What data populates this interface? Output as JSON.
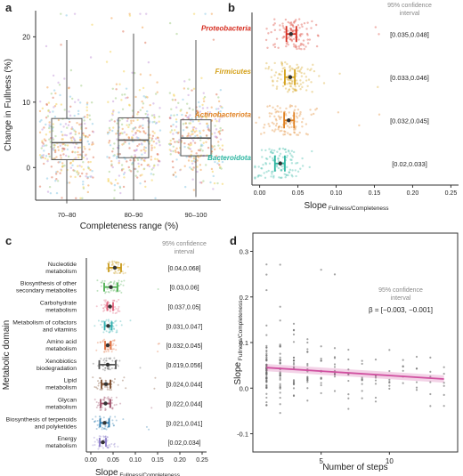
{
  "chart_data": [
    {
      "panel": "a",
      "type": "box",
      "xlabel": "Completeness range (%)",
      "ylabel": "Change in Fullness (%)",
      "categories": [
        "70–80",
        "80–90",
        "90–100"
      ],
      "ylim": [
        -5,
        24
      ],
      "yticks": [
        0,
        10,
        20
      ],
      "boxes": [
        {
          "min": -5.5,
          "q1": 1.2,
          "median": 3.8,
          "q3": 7.5,
          "max": 19.5
        },
        {
          "min": -5.0,
          "q1": 1.5,
          "median": 4.2,
          "q3": 7.6,
          "max": 20.5
        },
        {
          "min": -4.5,
          "q1": 1.8,
          "median": 4.5,
          "q3": 7.3,
          "max": 19.5
        }
      ],
      "point_colors": [
        "#e07a5f",
        "#f2a65a",
        "#8ecae6",
        "#c9a0dc",
        "#a8d08d",
        "#f4d35e"
      ]
    },
    {
      "panel": "b",
      "type": "forest",
      "xlabel": "Slope",
      "xlabel_sub": "Fullness/Completeness",
      "xlim": [
        -0.01,
        0.26
      ],
      "xticks": [
        "0.00",
        "0.05",
        "0.10",
        "0.15",
        "0.20",
        "0.25"
      ],
      "ci_header": "95% confidence interval",
      "series": [
        {
          "name": "Proteobacteria",
          "color": "#d62d20",
          "estimate": 0.041,
          "ci": [
            0.035,
            0.048
          ],
          "ci_label": "[0.035,0.048]"
        },
        {
          "name": "Firmicutes",
          "color": "#d4a017",
          "estimate": 0.04,
          "ci": [
            0.033,
            0.046
          ],
          "ci_label": "[0.033,0.046]"
        },
        {
          "name": "Actinobacteriota",
          "color": "#e08020",
          "estimate": 0.038,
          "ci": [
            0.032,
            0.045
          ],
          "ci_label": "[0.032,0.045]"
        },
        {
          "name": "Bacteroidota",
          "color": "#2ab5a0",
          "estimate": 0.027,
          "ci": [
            0.02,
            0.033
          ],
          "ci_label": "[0.02,0.033]"
        }
      ]
    },
    {
      "panel": "c",
      "type": "forest",
      "ylabel": "Metabolic domain",
      "xlabel": "Slope",
      "xlabel_sub": "Fullness/Completeness",
      "xlim": [
        -0.01,
        0.26
      ],
      "xticks": [
        "0.00",
        "0.05",
        "0.10",
        "0.15",
        "0.20",
        "0.25"
      ],
      "ci_header": "95% confidence interval",
      "series": [
        {
          "name": [
            "Nucleotide",
            "metabolism"
          ],
          "color": "#c99a1b",
          "estimate": 0.054,
          "ci": [
            0.04,
            0.068
          ],
          "ci_label": "[0.04,0.068]"
        },
        {
          "name": [
            "Biosynthesis of other",
            "secondary metabolites"
          ],
          "color": "#4caf50",
          "estimate": 0.045,
          "ci": [
            0.03,
            0.06
          ],
          "ci_label": "[0.03,0.06]"
        },
        {
          "name": [
            "Carbohydrate",
            "metabolism"
          ],
          "color": "#e0607a",
          "estimate": 0.043,
          "ci": [
            0.037,
            0.05
          ],
          "ci_label": "[0.037,0.05]"
        },
        {
          "name": [
            "Metabolism of cofactors",
            "and vitamins"
          ],
          "color": "#30b0b0",
          "estimate": 0.039,
          "ci": [
            0.031,
            0.047
          ],
          "ci_label": "[0.031,0.047]"
        },
        {
          "name": [
            "Amino acid",
            "metabolism"
          ],
          "color": "#e07040",
          "estimate": 0.038,
          "ci": [
            0.032,
            0.045
          ],
          "ci_label": "[0.032,0.045]"
        },
        {
          "name": [
            "Xenobiotics",
            "biodegradation"
          ],
          "color": "#555555",
          "estimate": 0.038,
          "ci": [
            0.019,
            0.056
          ],
          "ci_label": "[0.019,0.056]"
        },
        {
          "name": [
            "Lipid",
            "metabolism"
          ],
          "color": "#7a4a2a",
          "estimate": 0.034,
          "ci": [
            0.024,
            0.044
          ],
          "ci_label": "[0.024,0.044]"
        },
        {
          "name": [
            "Glycan",
            "metabolism"
          ],
          "color": "#a0506a",
          "estimate": 0.033,
          "ci": [
            0.022,
            0.044
          ],
          "ci_label": "[0.022,0.044]"
        },
        {
          "name": [
            "Biosynthesis of terpenoids",
            "and polyketides"
          ],
          "color": "#2a7ab0",
          "estimate": 0.031,
          "ci": [
            0.021,
            0.041
          ],
          "ci_label": "[0.021,0.041]"
        },
        {
          "name": [
            "Energy",
            "metabolism"
          ],
          "color": "#8a7ac8",
          "estimate": 0.027,
          "ci": [
            0.02,
            0.034
          ],
          "ci_label": "[0.02,0.034]"
        }
      ]
    },
    {
      "panel": "d",
      "type": "scatter",
      "xlabel": "Number of steps",
      "ylabel": "Slope",
      "ylabel_sub": "Fullness/Completeness",
      "xlim": [
        0,
        15
      ],
      "ylim": [
        -0.14,
        0.34
      ],
      "xticks": [
        5,
        10
      ],
      "yticks": [
        "0.3",
        "0.2",
        "0.1",
        "0.0",
        "-0.1"
      ],
      "ci_header": "95% confidence interval",
      "beta_label": "β = [−0.003, −0.001]",
      "fit": {
        "x": [
          1,
          14
        ],
        "y": [
          0.045,
          0.02
        ],
        "band": 0.008,
        "color": "#d050a0"
      }
    }
  ]
}
